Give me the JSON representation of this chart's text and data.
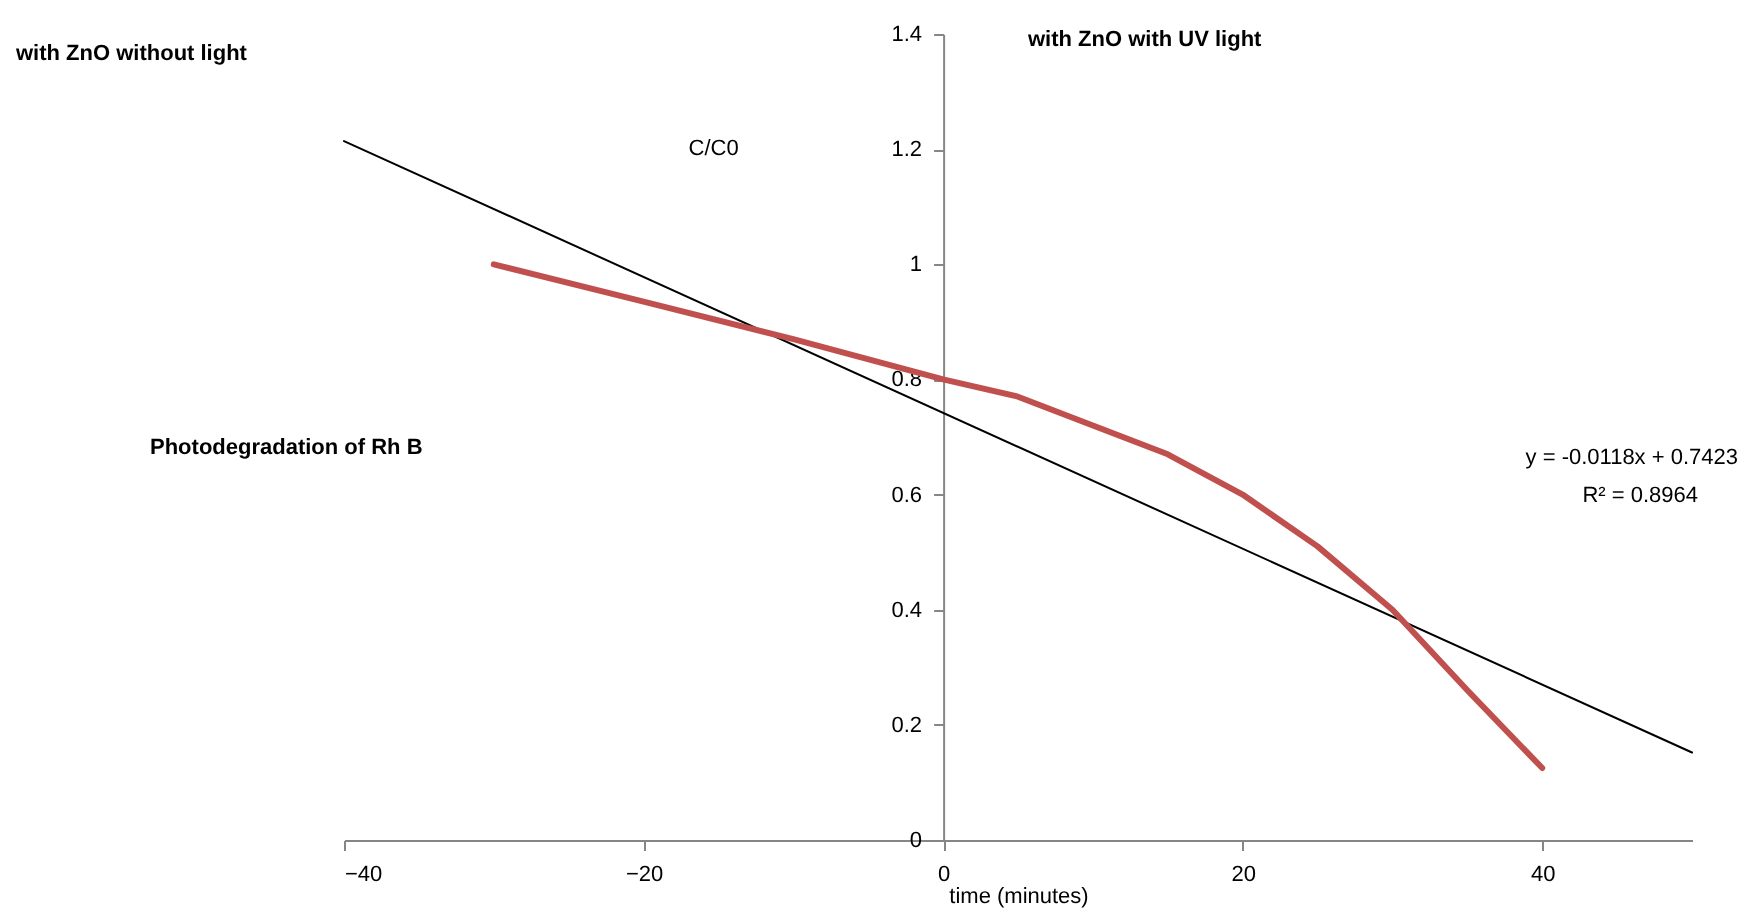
{
  "chart_data": {
    "type": "line",
    "xlabel": "time (minutes)",
    "ylabel": "C/C0",
    "annotations": [
      "with ZnO without light",
      "with ZnO with UV light",
      "Photodegradation of Rh B",
      "y = -0.0118x + 0.7423",
      "R² = 0.8964"
    ],
    "series": [
      {
        "color": "#000000",
        "x": [
          -40,
          50
        ],
        "values": [
          1.214,
          0.152
        ]
      },
      {
        "color": "#c0504d",
        "x": [
          -30,
          -20,
          -10,
          0,
          5,
          10,
          15,
          20,
          25,
          30,
          35,
          40
        ],
        "values": [
          1.0,
          0.935,
          0.87,
          0.8,
          0.77,
          0.72,
          0.67,
          0.6,
          0.51,
          0.4,
          0.26,
          0.125
        ]
      }
    ],
    "xlim": [
      -40,
      50
    ],
    "xticks": [
      -40,
      -20,
      0,
      20,
      40
    ],
    "ylim": [
      0,
      1.4
    ],
    "yticks": [
      0,
      0.2,
      0.4,
      0.6,
      0.8,
      1,
      1.2,
      1.4
    ],
    "grid": false,
    "marker": "none",
    "line_style": "solid"
  }
}
